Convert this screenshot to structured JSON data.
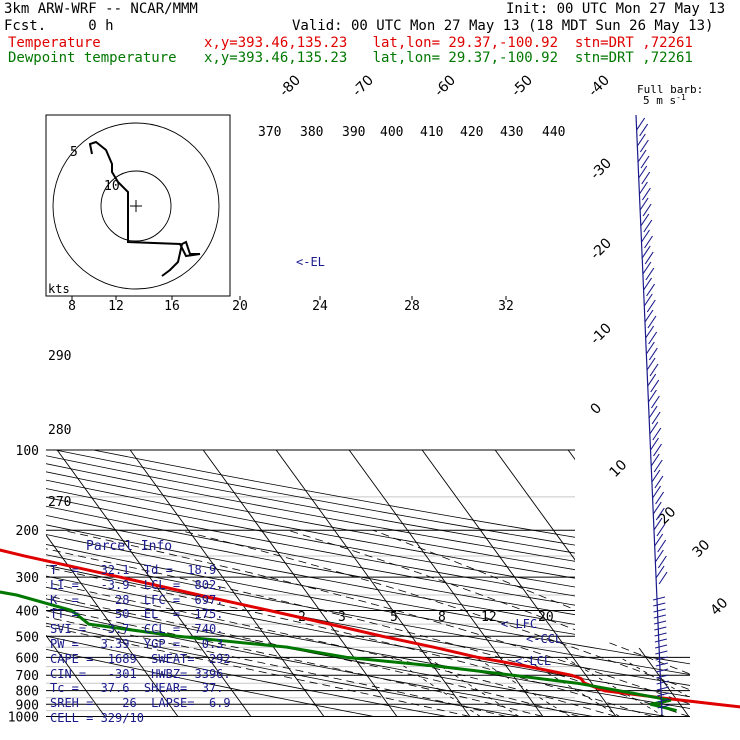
{
  "header": {
    "model": "3km ARW-WRF -- NCAR/MMM",
    "init": "Init: 00 UTC Mon 27 May 13",
    "fcst": "Fcst.     0 h",
    "valid": "Valid: 00 UTC Mon 27 May 13 (18 MDT Sun 26 May 13)",
    "temp_label": "Temperature",
    "dew_label": "Dewpoint temperature",
    "location": "x,y=393.46,135.23   lat,lon= 29.37,-100.92  stn=DRT ,72261"
  },
  "chart_data": {
    "type": "line",
    "title": "",
    "xlabel": "",
    "ylabel": "",
    "pressure_ticks": [
      100,
      200,
      300,
      400,
      500,
      600,
      700,
      800,
      900,
      1000
    ],
    "diagonal_labels": [
      "-80",
      "-70",
      "-60",
      "-50",
      "-40",
      "-30",
      "-20",
      "-10",
      "0",
      "10",
      "20",
      "30",
      "40"
    ],
    "theta_labels": [
      "370",
      "380",
      "390",
      "400",
      "410",
      "420",
      "430",
      "440"
    ],
    "theta_left_labels": [
      "290",
      "280",
      "270"
    ],
    "mixing_ratio_labels": [
      "2",
      "3",
      "5",
      "8",
      "12",
      "20"
    ],
    "wind_speed_labels": [
      "8",
      "12",
      "16",
      "20",
      "24",
      "28",
      "32"
    ],
    "wind_speed_unit": "kts",
    "hodograph_labels": [
      "5",
      "10"
    ],
    "barb_legend": [
      "Full barb:",
      "5 m s"
    ],
    "level_markers": [
      "<-EL",
      "< LFC",
      "<-CCL",
      "<-LCL"
    ],
    "series": [
      {
        "name": "Temperature",
        "color": "#e00000",
        "points": [
          [
            100,
            -62
          ],
          [
            150,
            -67
          ],
          [
            180,
            -69
          ],
          [
            200,
            -67
          ],
          [
            250,
            -55
          ],
          [
            300,
            -44
          ],
          [
            350,
            -35
          ],
          [
            400,
            -27
          ],
          [
            450,
            -20
          ],
          [
            500,
            -14
          ],
          [
            550,
            -8
          ],
          [
            600,
            -3
          ],
          [
            650,
            3
          ],
          [
            700,
            8
          ],
          [
            720,
            9
          ],
          [
            750,
            9
          ],
          [
            800,
            11
          ],
          [
            850,
            18
          ],
          [
            900,
            25
          ],
          [
            950,
            32.1
          ]
        ]
      },
      {
        "name": "Dewpoint temperature",
        "color": "#007800",
        "points": [
          [
            100,
            -88
          ],
          [
            150,
            -88
          ],
          [
            200,
            -84
          ],
          [
            250,
            -80
          ],
          [
            300,
            -72
          ],
          [
            350,
            -60
          ],
          [
            400,
            -54
          ],
          [
            450,
            -53
          ],
          [
            500,
            -42
          ],
          [
            550,
            -28
          ],
          [
            600,
            -21
          ],
          [
            650,
            -9
          ],
          [
            700,
            0
          ],
          [
            750,
            8
          ],
          [
            800,
            13
          ],
          [
            850,
            17.5
          ],
          [
            870,
            19
          ],
          [
            900,
            16
          ],
          [
            950,
            18.9
          ]
        ]
      }
    ]
  },
  "parcel_info": {
    "title": "Parcel Info",
    "lines": [
      "T  =   32.1  Td =  18.9",
      "LI =   -3.9  LCL =  802.",
      "K  =     28  LFC =  697.",
      "TT =     50  EL  =  175.",
      "SVI =  -3.7  CCL =  740.",
      "PW =   3.39  YGP =   0.3",
      "CAPE =  1689  SWEAT=  292",
      "CIN =   -301  HWBZ= 3396.",
      "Tc =   37.6  SHEAR=  37.",
      "SREH =    26  LAPSE=  6.9",
      "CELL = 329/10"
    ]
  }
}
